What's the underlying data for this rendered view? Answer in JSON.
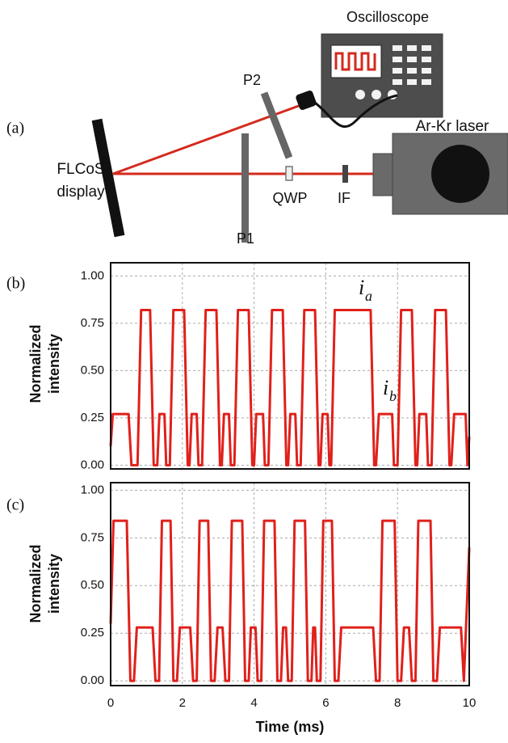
{
  "diagram": {
    "panel_label": "(a)",
    "oscilloscope": "Oscilloscope",
    "laser": "Ar-Kr laser",
    "display": [
      "FLCoS",
      "display"
    ],
    "p1": "P1",
    "p2": "P2",
    "qwp": "QWP",
    "if": "IF"
  },
  "chart_data": [
    {
      "type": "line",
      "panel_label": "(b)",
      "ylabel": [
        "Normalized",
        "intensity"
      ],
      "xlim": [
        0,
        10
      ],
      "ylim": [
        -0.02,
        1.07
      ],
      "xticks": [
        0,
        2,
        4,
        6,
        8,
        10
      ],
      "xtick_labels": false,
      "yticks": [
        {
          "value": 0,
          "label": "0.00"
        },
        0.25,
        {
          "value": 0.5,
          "label": "0.50"
        },
        0.75,
        {
          "value": 1,
          "label": "1.00"
        }
      ],
      "grid": true,
      "annotations": [
        {
          "text": "i",
          "subscript": "a"
        },
        {
          "text": "i",
          "subscript": "b"
        }
      ],
      "x": [
        0,
        0.06,
        0.5,
        0.58,
        0.75,
        0.85,
        1.1,
        1.2,
        1.3,
        1.36,
        1.5,
        1.55,
        1.65,
        1.75,
        2.05,
        2.15,
        2.2,
        2.26,
        2.4,
        2.45,
        2.55,
        2.65,
        2.95,
        3.05,
        3.1,
        3.16,
        3.3,
        3.35,
        3.45,
        3.55,
        3.85,
        3.95,
        4.0,
        4.06,
        4.25,
        4.3,
        4.4,
        4.5,
        4.8,
        4.9,
        4.95,
        5.01,
        5.15,
        5.2,
        5.3,
        5.4,
        5.7,
        5.8,
        5.85,
        5.91,
        6.05,
        6.1,
        6.15,
        6.25,
        7.25,
        7.35,
        7.4,
        7.48,
        7.85,
        7.9,
        8.0,
        8.1,
        8.4,
        8.5,
        8.55,
        8.61,
        8.8,
        8.85,
        8.95,
        9.05,
        9.35,
        9.45,
        9.5,
        9.58,
        9.9,
        9.95,
        10
      ],
      "series": [
        {
          "color": "#e0201b",
          "values": [
            0.1,
            0.27,
            0.27,
            0,
            0,
            0.82,
            0.82,
            0,
            0,
            0.27,
            0.27,
            0,
            0,
            0.82,
            0.82,
            0,
            0,
            0.27,
            0.27,
            0,
            0,
            0.82,
            0.82,
            0,
            0,
            0.27,
            0.27,
            0,
            0,
            0.82,
            0.82,
            0,
            0,
            0.27,
            0.27,
            0,
            0,
            0.82,
            0.82,
            0,
            0,
            0.27,
            0.27,
            0,
            0,
            0.82,
            0.82,
            0,
            0,
            0.27,
            0.27,
            0,
            0,
            0.82,
            0.82,
            0,
            0,
            0.27,
            0.27,
            0,
            0,
            0.82,
            0.82,
            0,
            0,
            0.27,
            0.27,
            0,
            0,
            0.82,
            0.82,
            0,
            0,
            0.27,
            0.27,
            0,
            0.15
          ]
        }
      ]
    },
    {
      "type": "line",
      "panel_label": "(c)",
      "ylabel": [
        "Normalized",
        "intensity"
      ],
      "xlabel": "Time (ms)",
      "xlim": [
        0,
        10
      ],
      "ylim": [
        -0.025,
        1.04
      ],
      "xticks": [
        0,
        2,
        4,
        6,
        8,
        10
      ],
      "xtick_labels": true,
      "yticks": [
        {
          "value": 0,
          "label": "0.00"
        },
        0.25,
        {
          "value": 0.5,
          "label": "0.50"
        },
        0.75,
        {
          "value": 1,
          "label": "1.00"
        }
      ],
      "grid": true,
      "x": [
        0,
        0.08,
        0.45,
        0.55,
        0.65,
        0.73,
        1.17,
        1.25,
        1.35,
        1.43,
        1.67,
        1.75,
        1.85,
        1.93,
        2.22,
        2.3,
        2.4,
        2.48,
        2.72,
        2.8,
        2.9,
        2.98,
        3.12,
        3.2,
        3.3,
        3.38,
        3.67,
        3.75,
        3.85,
        3.91,
        4.04,
        4.1,
        4.2,
        4.28,
        4.57,
        4.65,
        4.75,
        4.81,
        4.89,
        4.95,
        5.05,
        5.13,
        5.42,
        5.5,
        5.6,
        5.65,
        5.7,
        5.75,
        5.85,
        5.93,
        6.17,
        6.25,
        6.35,
        6.43,
        7.32,
        7.4,
        7.5,
        7.58,
        7.92,
        8.0,
        8.1,
        8.18,
        8.32,
        8.4,
        8.5,
        8.58,
        8.92,
        9.0,
        9.1,
        9.18,
        9.77,
        9.85,
        10
      ],
      "series": [
        {
          "color": "#e0201b",
          "values": [
            0.3,
            0.84,
            0.84,
            0,
            0,
            0.28,
            0.28,
            0,
            0,
            0.84,
            0.84,
            0,
            0,
            0.28,
            0.28,
            0,
            0,
            0.84,
            0.84,
            0,
            0,
            0.28,
            0.28,
            0,
            0,
            0.84,
            0.84,
            0,
            0,
            0.28,
            0.28,
            0,
            0,
            0.84,
            0.84,
            0,
            0,
            0.28,
            0.28,
            0,
            0,
            0.84,
            0.84,
            0,
            0,
            0.28,
            0.28,
            0,
            0,
            0.84,
            0.84,
            0,
            0,
            0.28,
            0.28,
            0,
            0,
            0.84,
            0.84,
            0,
            0,
            0.28,
            0.28,
            0,
            0,
            0.84,
            0.84,
            0,
            0,
            0.28,
            0.28,
            0,
            0.7
          ]
        }
      ]
    }
  ]
}
